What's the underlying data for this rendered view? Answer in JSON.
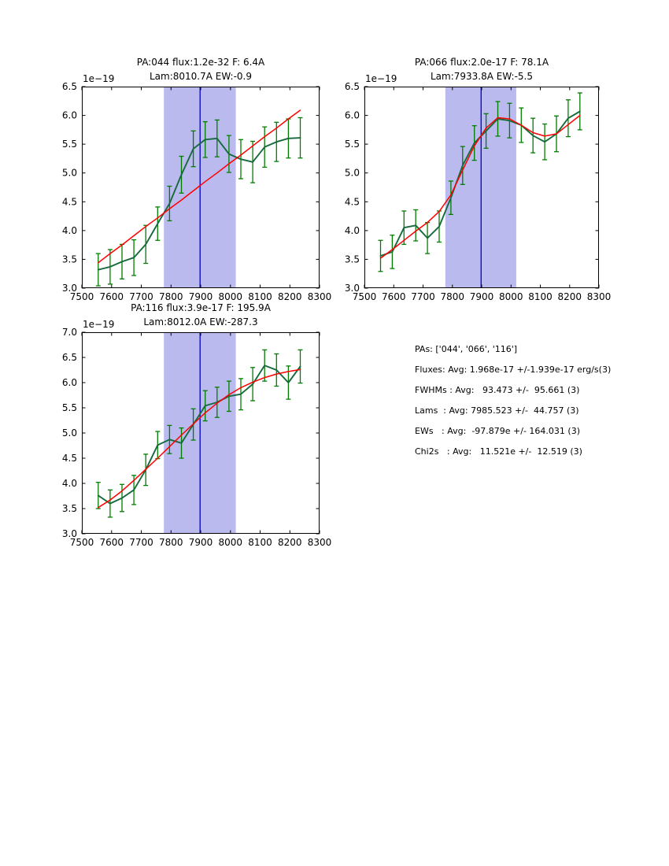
{
  "figure": {
    "background": "#ffffff",
    "colors": {
      "frame": "#000000",
      "band_fill": "#babaee",
      "center_line": "#0d0dcc",
      "data_line": "#166a3b",
      "error_bar": "#007d00",
      "fit_line": "#ff0000",
      "text": "#000000"
    }
  },
  "chart_data": [
    {
      "type": "line",
      "title_line1": "PA:044 flux:1.2e-32 F: 6.4A",
      "title_line2": "Lam:8010.7A EW:-0.9",
      "offset_label": "1e−19",
      "xlim": [
        7500,
        8300
      ],
      "ylim": [
        3.0,
        6.5
      ],
      "xticks": [
        7500,
        7600,
        7700,
        7800,
        7900,
        8000,
        8100,
        8200,
        8300
      ],
      "yticks": [
        3.0,
        3.5,
        4.0,
        4.5,
        5.0,
        5.5,
        6.0,
        6.5
      ],
      "band": {
        "x0": 7776,
        "x1": 8018
      },
      "vline_x": 7898,
      "x": [
        7555,
        7595,
        7635,
        7675,
        7715,
        7755,
        7795,
        7835,
        7875,
        7915,
        7955,
        7995,
        8035,
        8075,
        8115,
        8155,
        8195,
        8235
      ],
      "series": [
        {
          "name": "spectrum",
          "values": [
            3.32,
            3.37,
            3.46,
            3.53,
            3.76,
            4.12,
            4.47,
            4.97,
            5.42,
            5.58,
            5.6,
            5.33,
            5.24,
            5.19,
            5.45,
            5.54,
            5.6,
            5.61
          ],
          "yerr": [
            0.28,
            0.3,
            0.3,
            0.31,
            0.33,
            0.29,
            0.3,
            0.32,
            0.31,
            0.31,
            0.32,
            0.32,
            0.34,
            0.36,
            0.35,
            0.34,
            0.34,
            0.35
          ],
          "color": "#166a3b",
          "err_color": "#007d00",
          "width": 1.9
        },
        {
          "name": "fit",
          "values": [
            3.44,
            3.6,
            3.75,
            3.91,
            4.07,
            4.22,
            4.38,
            4.53,
            4.69,
            4.85,
            5.0,
            5.16,
            5.31,
            5.47,
            5.63,
            5.78,
            5.94,
            6.09
          ],
          "color": "#ff0000",
          "width": 1.5
        }
      ]
    },
    {
      "type": "line",
      "title_line1": "PA:066 flux:2.0e-17 F: 78.1A",
      "title_line2": "Lam:7933.8A EW:-5.5",
      "offset_label": "1e−19",
      "xlim": [
        7500,
        8300
      ],
      "ylim": [
        3.0,
        6.5
      ],
      "xticks": [
        7500,
        7600,
        7700,
        7800,
        7900,
        8000,
        8100,
        8200,
        8300
      ],
      "yticks": [
        3.0,
        3.5,
        4.0,
        4.5,
        5.0,
        5.5,
        6.0,
        6.5
      ],
      "band": {
        "x0": 7776,
        "x1": 8018
      },
      "vline_x": 7898,
      "x": [
        7555,
        7595,
        7635,
        7675,
        7715,
        7755,
        7795,
        7835,
        7875,
        7915,
        7955,
        7995,
        8035,
        8075,
        8115,
        8155,
        8195,
        8235
      ],
      "series": [
        {
          "name": "spectrum",
          "values": [
            3.56,
            3.63,
            4.05,
            4.09,
            3.87,
            4.07,
            4.57,
            5.13,
            5.52,
            5.73,
            5.94,
            5.91,
            5.83,
            5.65,
            5.54,
            5.68,
            5.95,
            6.07
          ],
          "yerr": [
            0.27,
            0.29,
            0.29,
            0.27,
            0.27,
            0.27,
            0.29,
            0.33,
            0.3,
            0.3,
            0.3,
            0.3,
            0.3,
            0.3,
            0.31,
            0.31,
            0.32,
            0.32
          ],
          "color": "#166a3b",
          "err_color": "#007d00",
          "width": 1.9
        },
        {
          "name": "fit",
          "values": [
            3.52,
            3.67,
            3.83,
            3.99,
            4.14,
            4.33,
            4.62,
            5.05,
            5.47,
            5.78,
            5.96,
            5.94,
            5.83,
            5.7,
            5.64,
            5.68,
            5.84,
            6.0
          ],
          "color": "#ff0000",
          "width": 1.5
        }
      ]
    },
    {
      "type": "line",
      "title_line1": "PA:116 flux:3.9e-17 F: 195.9A",
      "title_line2": "Lam:8012.0A EW:-287.3",
      "offset_label": "1e−19",
      "xlim": [
        7500,
        8300
      ],
      "ylim": [
        3.0,
        7.0
      ],
      "xticks": [
        7500,
        7600,
        7700,
        7800,
        7900,
        8000,
        8100,
        8200,
        8300
      ],
      "yticks": [
        3.0,
        3.5,
        4.0,
        4.5,
        5.0,
        5.5,
        6.0,
        6.5,
        7.0
      ],
      "band": {
        "x0": 7776,
        "x1": 8018
      },
      "vline_x": 7898,
      "x": [
        7555,
        7595,
        7635,
        7675,
        7715,
        7755,
        7795,
        7835,
        7875,
        7915,
        7955,
        7995,
        8035,
        8075,
        8115,
        8155,
        8195,
        8235
      ],
      "series": [
        {
          "name": "spectrum",
          "values": [
            3.76,
            3.6,
            3.71,
            3.87,
            4.27,
            4.76,
            4.87,
            4.8,
            5.17,
            5.54,
            5.61,
            5.73,
            5.77,
            5.97,
            6.34,
            6.25,
            6.0,
            6.32
          ],
          "yerr": [
            0.26,
            0.27,
            0.27,
            0.29,
            0.31,
            0.27,
            0.28,
            0.3,
            0.31,
            0.3,
            0.3,
            0.3,
            0.31,
            0.33,
            0.31,
            0.32,
            0.33,
            0.33
          ],
          "color": "#166a3b",
          "err_color": "#007d00",
          "width": 1.9
        },
        {
          "name": "fit",
          "values": [
            3.52,
            3.67,
            3.85,
            4.06,
            4.28,
            4.5,
            4.73,
            4.96,
            5.18,
            5.4,
            5.59,
            5.76,
            5.9,
            6.01,
            6.1,
            6.17,
            6.22,
            6.26
          ],
          "color": "#ff0000",
          "width": 1.5
        }
      ]
    }
  ],
  "stats_panel": {
    "lines": [
      "PAs: ['044', '066', '116']",
      "Fluxes: Avg: 1.968e-17 +/-1.939e-17 erg/s(3)",
      "FWHMs : Avg:   93.473 +/-  95.661 (3)",
      "Lams  : Avg: 7985.523 +/-  44.757 (3)",
      "EWs   : Avg:  -97.879e +/- 164.031 (3)",
      "Chi2s   : Avg:   11.521e +/-  12.519 (3)"
    ]
  }
}
